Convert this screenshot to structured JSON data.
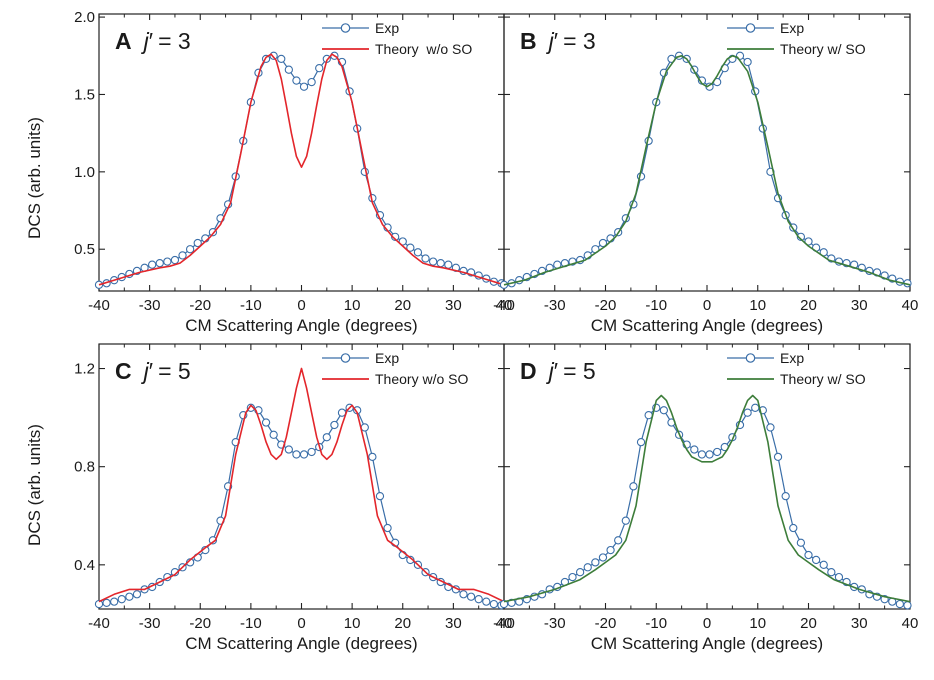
{
  "figure": {
    "shared_ylabel": "DCS (arb. units)"
  },
  "chart_data": [
    {
      "type": "line",
      "panel_letter": "A",
      "panel_state_prefix": "j",
      "panel_state_prime": "′",
      "panel_state_value": "= 3",
      "xlabel": "CM Scattering Angle (degrees)",
      "ylabel": "DCS (arb. units)",
      "xlim": [
        -40,
        40
      ],
      "ylim": [
        0.23,
        2.02
      ],
      "x_ticks": [
        -40,
        -30,
        -20,
        -10,
        0,
        10,
        20,
        30,
        40
      ],
      "x_tick_labels": [
        "-40",
        "-30",
        "-20",
        "-10",
        "0",
        "10",
        "20",
        "30",
        "40"
      ],
      "y_ticks": [
        0.5,
        1.0,
        1.5,
        2.0
      ],
      "y_tick_labels": [
        "0.5",
        "1.0",
        "1.5",
        "2.0"
      ],
      "legend_position": "top-right",
      "series": [
        {
          "name": "Exp",
          "style": "line-markers",
          "color": "#3a6ea8",
          "x": [
            -40,
            -38.5,
            -37,
            -35.5,
            -34,
            -32.5,
            -31,
            -29.5,
            -28,
            -26.5,
            -25,
            -23.5,
            -22,
            -20.5,
            -19,
            -17.5,
            -16,
            -14.5,
            -13,
            -11.5,
            -10,
            -8.5,
            -7,
            -5.5,
            -4,
            -2.5,
            -1,
            0.5,
            2,
            3.5,
            5,
            6.5,
            8,
            9.5,
            11,
            12.5,
            14,
            15.5,
            17,
            18.5,
            20,
            21.5,
            23,
            24.5,
            26,
            27.5,
            29,
            30.5,
            32,
            33.5,
            35,
            36.5,
            38,
            39.5
          ],
          "y": [
            0.27,
            0.28,
            0.3,
            0.32,
            0.34,
            0.36,
            0.38,
            0.4,
            0.41,
            0.42,
            0.43,
            0.46,
            0.5,
            0.54,
            0.57,
            0.61,
            0.7,
            0.79,
            0.97,
            1.2,
            1.45,
            1.64,
            1.73,
            1.75,
            1.73,
            1.66,
            1.59,
            1.55,
            1.58,
            1.67,
            1.73,
            1.75,
            1.71,
            1.52,
            1.28,
            1.0,
            0.83,
            0.72,
            0.64,
            0.58,
            0.55,
            0.51,
            0.48,
            0.44,
            0.42,
            0.41,
            0.4,
            0.38,
            0.36,
            0.35,
            0.33,
            0.31,
            0.29,
            0.28
          ]
        },
        {
          "name": "Theory  w/o SO",
          "style": "line",
          "color": "#e3262b",
          "x": [
            -40,
            -36,
            -32,
            -28,
            -26,
            -24,
            -22,
            -20,
            -18,
            -16,
            -14,
            -12,
            -10,
            -8,
            -7,
            -6,
            -5,
            -4,
            -3,
            -2,
            -1,
            0,
            1,
            2,
            3,
            4,
            5,
            6,
            7,
            8,
            10,
            12,
            14,
            16,
            18,
            20,
            22,
            24,
            26,
            28,
            32,
            36,
            40
          ],
          "y": [
            0.27,
            0.31,
            0.35,
            0.38,
            0.39,
            0.41,
            0.46,
            0.52,
            0.58,
            0.66,
            0.8,
            1.12,
            1.45,
            1.68,
            1.74,
            1.76,
            1.72,
            1.6,
            1.43,
            1.25,
            1.1,
            1.03,
            1.1,
            1.25,
            1.43,
            1.6,
            1.72,
            1.76,
            1.74,
            1.68,
            1.45,
            1.12,
            0.8,
            0.66,
            0.58,
            0.52,
            0.46,
            0.41,
            0.39,
            0.38,
            0.35,
            0.31,
            0.27
          ]
        }
      ]
    },
    {
      "type": "line",
      "panel_letter": "B",
      "panel_state_prefix": "j",
      "panel_state_prime": "′",
      "panel_state_value": "= 3",
      "xlabel": "CM Scattering Angle (degrees)",
      "xlim": [
        -40,
        40
      ],
      "ylim": [
        0.23,
        2.02
      ],
      "x_ticks": [
        -40,
        -30,
        -20,
        -10,
        0,
        10,
        20,
        30,
        40
      ],
      "x_tick_labels": [
        "-40",
        "-30",
        "-20",
        "-10",
        "0",
        "10",
        "20",
        "30",
        "40"
      ],
      "y_ticks": [
        0.5,
        1.0,
        1.5,
        2.0
      ],
      "legend_position": "top-right",
      "series": [
        {
          "name": "Exp",
          "style": "line-markers",
          "color": "#3a6ea8",
          "x": [
            -40,
            -38.5,
            -37,
            -35.5,
            -34,
            -32.5,
            -31,
            -29.5,
            -28,
            -26.5,
            -25,
            -23.5,
            -22,
            -20.5,
            -19,
            -17.5,
            -16,
            -14.5,
            -13,
            -11.5,
            -10,
            -8.5,
            -7,
            -5.5,
            -4,
            -2.5,
            -1,
            0.5,
            2,
            3.5,
            5,
            6.5,
            8,
            9.5,
            11,
            12.5,
            14,
            15.5,
            17,
            18.5,
            20,
            21.5,
            23,
            24.5,
            26,
            27.5,
            29,
            30.5,
            32,
            33.5,
            35,
            36.5,
            38,
            39.5
          ],
          "y": [
            0.27,
            0.28,
            0.3,
            0.32,
            0.34,
            0.36,
            0.38,
            0.4,
            0.41,
            0.42,
            0.43,
            0.46,
            0.5,
            0.54,
            0.57,
            0.61,
            0.7,
            0.79,
            0.97,
            1.2,
            1.45,
            1.64,
            1.73,
            1.75,
            1.73,
            1.66,
            1.59,
            1.55,
            1.58,
            1.67,
            1.73,
            1.75,
            1.71,
            1.52,
            1.28,
            1.0,
            0.83,
            0.72,
            0.64,
            0.58,
            0.55,
            0.51,
            0.48,
            0.44,
            0.42,
            0.41,
            0.4,
            0.38,
            0.36,
            0.35,
            0.33,
            0.31,
            0.29,
            0.28
          ]
        },
        {
          "name": "Theory w/ SO",
          "style": "line",
          "color": "#3d7d3a",
          "x": [
            -40,
            -36,
            -32,
            -28,
            -24,
            -20,
            -18,
            -16,
            -14,
            -12,
            -10,
            -8,
            -6,
            -5,
            -4,
            -3,
            -2,
            -1,
            0,
            1,
            2,
            3,
            4,
            5,
            6,
            8,
            10,
            12,
            14,
            16,
            18,
            20,
            24,
            28,
            32,
            36,
            40
          ],
          "y": [
            0.27,
            0.3,
            0.35,
            0.39,
            0.43,
            0.52,
            0.58,
            0.68,
            0.86,
            1.16,
            1.45,
            1.65,
            1.74,
            1.75,
            1.73,
            1.68,
            1.62,
            1.57,
            1.55,
            1.57,
            1.62,
            1.68,
            1.73,
            1.75,
            1.74,
            1.65,
            1.45,
            1.16,
            0.86,
            0.68,
            0.58,
            0.52,
            0.43,
            0.39,
            0.35,
            0.3,
            0.27
          ]
        }
      ]
    },
    {
      "type": "line",
      "panel_letter": "C",
      "panel_state_prefix": "j",
      "panel_state_prime": "′",
      "panel_state_value": "= 5",
      "xlabel": "CM Scattering Angle (degrees)",
      "ylabel": "DCS (arb. units)",
      "xlim": [
        -40,
        40
      ],
      "ylim": [
        0.22,
        1.3
      ],
      "x_ticks": [
        -40,
        -30,
        -20,
        -10,
        0,
        10,
        20,
        30,
        40
      ],
      "x_tick_labels": [
        "-40",
        "-30",
        "-20",
        "-10",
        "0",
        "10",
        "20",
        "30",
        "40"
      ],
      "y_ticks": [
        0.4,
        0.8,
        1.2
      ],
      "y_tick_labels": [
        "0.4",
        "0.8",
        "1.2"
      ],
      "legend_position": "top-right",
      "series": [
        {
          "name": "Exp",
          "style": "line-markers",
          "color": "#3a6ea8",
          "x": [
            -40,
            -38.5,
            -37,
            -35.5,
            -34,
            -32.5,
            -31,
            -29.5,
            -28,
            -26.5,
            -25,
            -23.5,
            -22,
            -20.5,
            -19,
            -17.5,
            -16,
            -14.5,
            -13,
            -11.5,
            -10,
            -8.5,
            -7,
            -5.5,
            -4,
            -2.5,
            -1,
            0.5,
            2,
            3.5,
            5,
            6.5,
            8,
            9.5,
            11,
            12.5,
            14,
            15.5,
            17,
            18.5,
            20,
            21.5,
            23,
            24.5,
            26,
            27.5,
            29,
            30.5,
            32,
            33.5,
            35,
            36.5,
            38,
            39.5
          ],
          "y": [
            0.24,
            0.245,
            0.25,
            0.26,
            0.27,
            0.28,
            0.3,
            0.31,
            0.33,
            0.35,
            0.37,
            0.39,
            0.41,
            0.43,
            0.46,
            0.5,
            0.58,
            0.72,
            0.9,
            1.01,
            1.04,
            1.03,
            0.98,
            0.93,
            0.89,
            0.87,
            0.85,
            0.85,
            0.86,
            0.88,
            0.92,
            0.97,
            1.02,
            1.04,
            1.03,
            0.96,
            0.84,
            0.68,
            0.55,
            0.49,
            0.44,
            0.42,
            0.4,
            0.37,
            0.35,
            0.33,
            0.31,
            0.3,
            0.28,
            0.27,
            0.26,
            0.25,
            0.24,
            0.235
          ]
        },
        {
          "name": "Theory w/o SO",
          "style": "line",
          "color": "#e3262b",
          "x": [
            -40,
            -37,
            -34,
            -31,
            -28,
            -25,
            -22,
            -19,
            -17,
            -15,
            -13,
            -11,
            -10,
            -9,
            -8,
            -7,
            -6,
            -5,
            -4,
            -3,
            -2,
            -1,
            0,
            1,
            2,
            3,
            4,
            5,
            6,
            7,
            8,
            9,
            10,
            11,
            13,
            15,
            17,
            19,
            22,
            25,
            28,
            31,
            34,
            37,
            40
          ],
          "y": [
            0.25,
            0.28,
            0.3,
            0.3,
            0.33,
            0.36,
            0.42,
            0.47,
            0.5,
            0.6,
            0.85,
            1.02,
            1.05,
            1.03,
            0.97,
            0.9,
            0.85,
            0.83,
            0.85,
            0.92,
            1.02,
            1.12,
            1.2,
            1.12,
            1.02,
            0.92,
            0.85,
            0.83,
            0.85,
            0.9,
            0.97,
            1.03,
            1.05,
            1.02,
            0.85,
            0.6,
            0.5,
            0.47,
            0.42,
            0.36,
            0.33,
            0.3,
            0.3,
            0.28,
            0.25
          ]
        }
      ]
    },
    {
      "type": "line",
      "panel_letter": "D",
      "panel_state_prefix": "j",
      "panel_state_prime": "′",
      "panel_state_value": "= 5",
      "xlabel": "CM Scattering Angle (degrees)",
      "xlim": [
        -40,
        40
      ],
      "ylim": [
        0.22,
        1.3
      ],
      "x_ticks": [
        -40,
        -30,
        -20,
        -10,
        0,
        10,
        20,
        30,
        40
      ],
      "x_tick_labels": [
        "-40",
        "-30",
        "-20",
        "-10",
        "0",
        "10",
        "20",
        "30",
        "40"
      ],
      "y_ticks": [
        0.4,
        0.8,
        1.2
      ],
      "legend_position": "top-right",
      "series": [
        {
          "name": "Exp",
          "style": "line-markers",
          "color": "#3a6ea8",
          "x": [
            -40,
            -38.5,
            -37,
            -35.5,
            -34,
            -32.5,
            -31,
            -29.5,
            -28,
            -26.5,
            -25,
            -23.5,
            -22,
            -20.5,
            -19,
            -17.5,
            -16,
            -14.5,
            -13,
            -11.5,
            -10,
            -8.5,
            -7,
            -5.5,
            -4,
            -2.5,
            -1,
            0.5,
            2,
            3.5,
            5,
            6.5,
            8,
            9.5,
            11,
            12.5,
            14,
            15.5,
            17,
            18.5,
            20,
            21.5,
            23,
            24.5,
            26,
            27.5,
            29,
            30.5,
            32,
            33.5,
            35,
            36.5,
            38,
            39.5
          ],
          "y": [
            0.24,
            0.245,
            0.25,
            0.26,
            0.27,
            0.28,
            0.3,
            0.31,
            0.33,
            0.35,
            0.37,
            0.39,
            0.41,
            0.43,
            0.46,
            0.5,
            0.58,
            0.72,
            0.9,
            1.01,
            1.04,
            1.03,
            0.98,
            0.93,
            0.89,
            0.87,
            0.85,
            0.85,
            0.86,
            0.88,
            0.92,
            0.97,
            1.02,
            1.04,
            1.03,
            0.96,
            0.84,
            0.68,
            0.55,
            0.49,
            0.44,
            0.42,
            0.4,
            0.37,
            0.35,
            0.33,
            0.31,
            0.3,
            0.28,
            0.27,
            0.26,
            0.25,
            0.24,
            0.235
          ]
        },
        {
          "name": "Theory w/ SO",
          "style": "line",
          "color": "#3d7d3a",
          "x": [
            -40,
            -35,
            -30,
            -25,
            -22,
            -20,
            -18,
            -16,
            -14,
            -12,
            -10,
            -9,
            -8,
            -7,
            -6,
            -5,
            -4,
            -3,
            -2,
            -1,
            0,
            1,
            2,
            3,
            4,
            5,
            6,
            7,
            8,
            9,
            10,
            12,
            14,
            16,
            18,
            20,
            22,
            25,
            30,
            35,
            40
          ],
          "y": [
            0.25,
            0.27,
            0.3,
            0.34,
            0.38,
            0.41,
            0.44,
            0.5,
            0.64,
            0.9,
            1.07,
            1.09,
            1.07,
            1.02,
            0.96,
            0.91,
            0.87,
            0.84,
            0.83,
            0.82,
            0.82,
            0.82,
            0.83,
            0.84,
            0.87,
            0.91,
            0.96,
            1.02,
            1.07,
            1.09,
            1.07,
            0.9,
            0.64,
            0.5,
            0.44,
            0.41,
            0.38,
            0.34,
            0.3,
            0.27,
            0.25
          ]
        }
      ]
    }
  ]
}
